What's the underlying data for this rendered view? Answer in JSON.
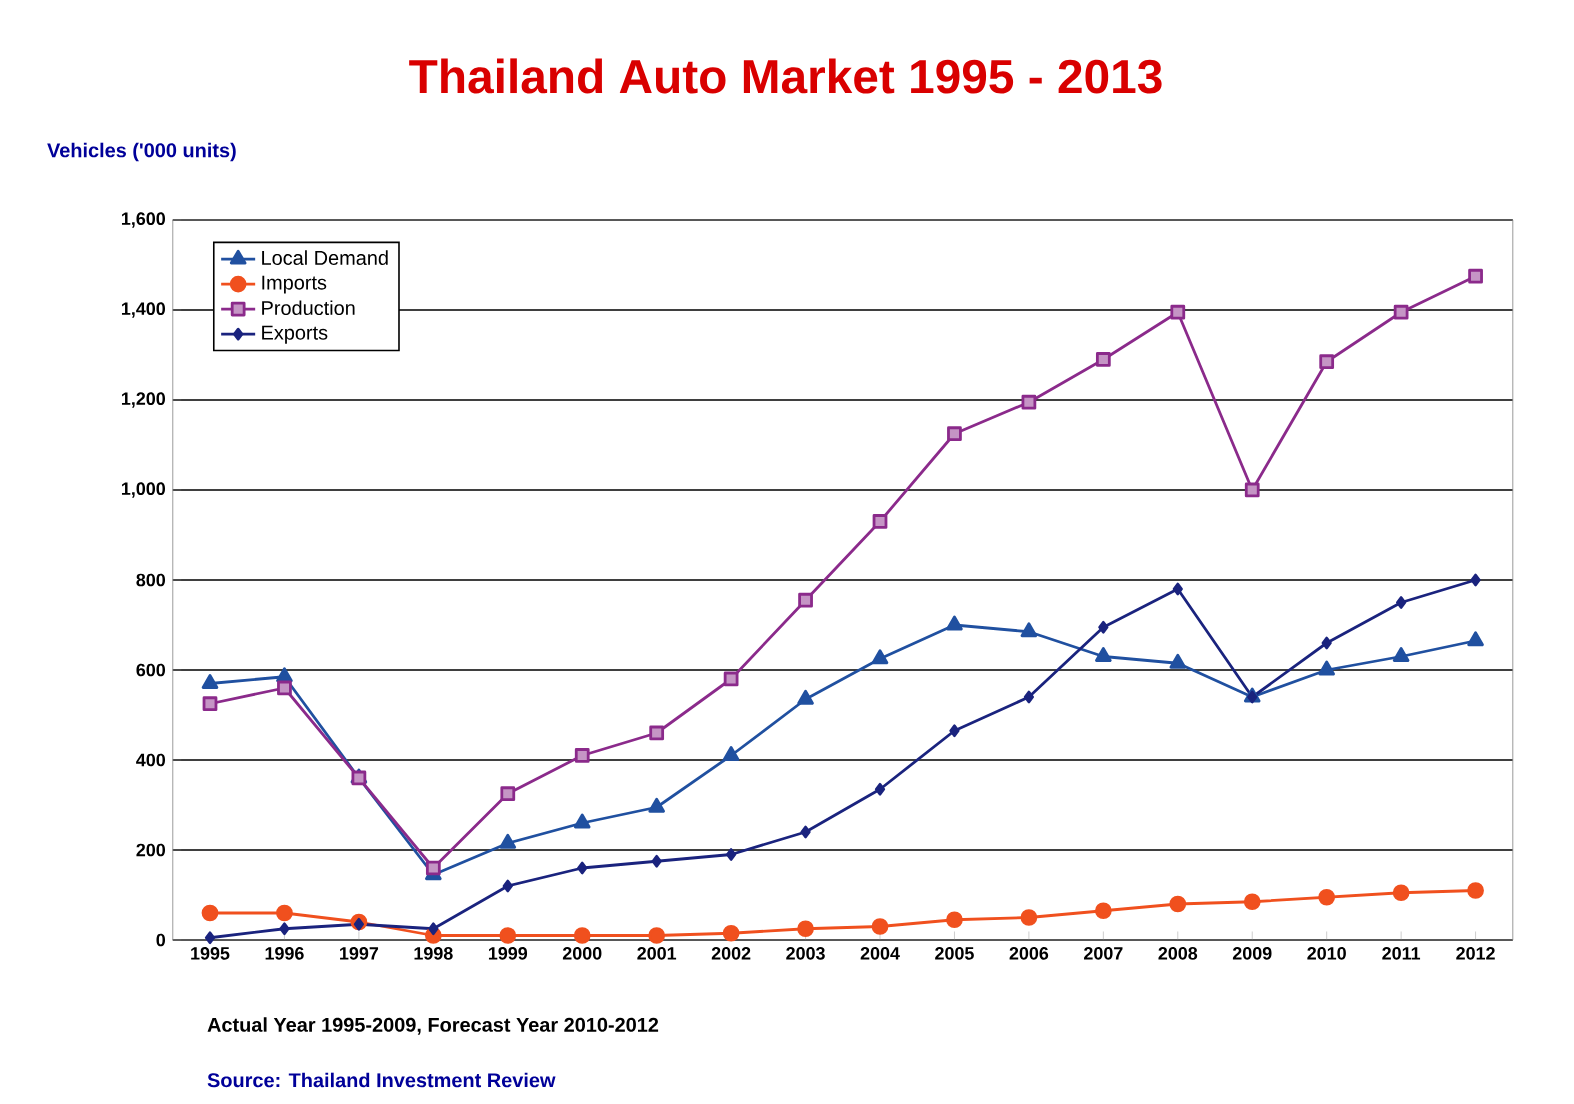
{
  "chart_data": {
    "type": "line",
    "title": "Thailand Auto Market 1995 - 2013",
    "ylabel": "Vehicles ('000 units)",
    "categories": [
      "1995",
      "1996",
      "1997",
      "1998",
      "1999",
      "2000",
      "2001",
      "2002",
      "2003",
      "2004",
      "2005",
      "2006",
      "2007",
      "2008",
      "2009",
      "2010",
      "2011",
      "2012"
    ],
    "series": [
      {
        "name": "Local Demand",
        "color": "#2050a0",
        "marker": "triangle",
        "values": [
          570,
          585,
          360,
          145,
          215,
          260,
          295,
          410,
          535,
          625,
          700,
          685,
          630,
          615,
          540,
          600,
          630,
          665
        ]
      },
      {
        "name": "Imports",
        "color": "#f0501e",
        "marker": "circle",
        "values": [
          60,
          60,
          40,
          10,
          10,
          10,
          10,
          15,
          25,
          30,
          45,
          50,
          65,
          80,
          85,
          95,
          105,
          110
        ]
      },
      {
        "name": "Production",
        "color": "#8b2a8b",
        "marker": "square",
        "values": [
          525,
          560,
          360,
          160,
          325,
          410,
          460,
          580,
          755,
          930,
          1125,
          1195,
          1290,
          1395,
          1000,
          1285,
          1395,
          1475
        ]
      },
      {
        "name": "Exports",
        "color": "#1a237e",
        "marker": "diamond",
        "values": [
          5,
          25,
          35,
          25,
          120,
          160,
          175,
          190,
          240,
          335,
          465,
          540,
          695,
          780,
          540,
          660,
          750,
          800
        ]
      }
    ],
    "ylim": [
      0,
      1600
    ],
    "yticks": [
      0,
      200,
      400,
      600,
      800,
      {
        "value": 1000,
        "label": "1,000"
      },
      {
        "value": 1200,
        "label": "1,200"
      },
      {
        "value": 1400,
        "label": "1,400"
      },
      {
        "value": 1600,
        "label": "1,600"
      }
    ],
    "grid": "y",
    "legend": "top left",
    "line_style": "solid",
    "annotations": [
      "Actual Year 1995-2009, Forecast Year 2010-2012",
      "Source: Thailand Investment Review"
    ]
  }
}
